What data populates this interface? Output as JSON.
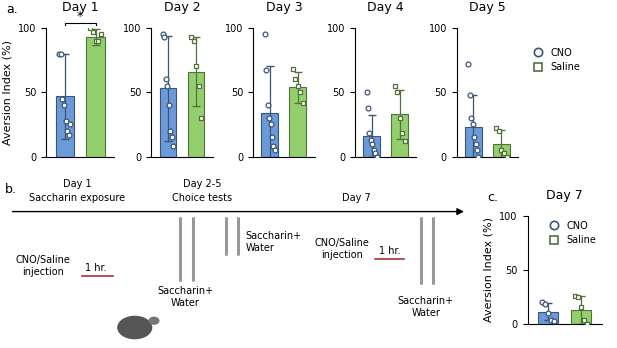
{
  "chart_data": [
    {
      "type": "bar",
      "panel_label": "a.",
      "title": "Day 1",
      "ylabel": "Aversion Index (%)",
      "ylim": [
        0,
        100
      ],
      "yticks": [
        0,
        50,
        100
      ],
      "tick_labels": "y",
      "annotations": [
        "*"
      ],
      "series": [
        {
          "name": "CNO",
          "color": "#6a9ad8",
          "marker": "circle",
          "values": [
            47
          ],
          "error": [
            33
          ],
          "points": [
            80,
            80,
            45,
            40,
            28,
            20,
            17,
            25
          ]
        },
        {
          "name": "Saline",
          "color": "#94cf6e",
          "marker": "square",
          "values": [
            93
          ],
          "error": [
            6
          ],
          "points": [
            100,
            97,
            90,
            90,
            95
          ]
        }
      ]
    },
    {
      "type": "bar",
      "title": "Day 2",
      "ylim": [
        0,
        100
      ],
      "yticks": [
        0,
        50,
        100
      ],
      "tick_labels": "y",
      "series": [
        {
          "name": "CNO",
          "color": "#6a9ad8",
          "marker": "circle",
          "values": [
            53
          ],
          "error": [
            41
          ],
          "points": [
            95,
            93,
            60,
            55,
            40,
            20,
            15,
            8
          ]
        },
        {
          "name": "Saline",
          "color": "#94cf6e",
          "marker": "square",
          "values": [
            66
          ],
          "error": [
            27
          ],
          "points": [
            93,
            90,
            70,
            55,
            30
          ]
        }
      ]
    },
    {
      "type": "bar",
      "title": "Day 3",
      "ylim": [
        0,
        100
      ],
      "yticks": [
        0,
        50,
        100
      ],
      "tick_labels": "y",
      "series": [
        {
          "name": "CNO",
          "color": "#6a9ad8",
          "marker": "circle",
          "values": [
            34
          ],
          "error": [
            36
          ],
          "points": [
            95,
            67,
            40,
            30,
            25,
            15,
            8,
            5
          ]
        },
        {
          "name": "Saline",
          "color": "#94cf6e",
          "marker": "square",
          "values": [
            54
          ],
          "error": [
            12
          ],
          "points": [
            68,
            60,
            55,
            50,
            42
          ]
        }
      ]
    },
    {
      "type": "bar",
      "title": "Day 4",
      "ylim": [
        0,
        100
      ],
      "yticks": [
        0,
        50,
        100
      ],
      "tick_labels": "y",
      "series": [
        {
          "name": "CNO",
          "color": "#6a9ad8",
          "marker": "circle",
          "values": [
            16
          ],
          "error": [
            16
          ],
          "points": [
            50,
            38,
            18,
            13,
            10,
            5,
            3,
            0
          ]
        },
        {
          "name": "Saline",
          "color": "#94cf6e",
          "marker": "square",
          "values": [
            33
          ],
          "error": [
            19
          ],
          "points": [
            55,
            50,
            30,
            18,
            12
          ]
        }
      ]
    },
    {
      "type": "bar",
      "title": "Day 5",
      "ylim": [
        0,
        100
      ],
      "yticks": [
        0,
        50,
        100
      ],
      "tick_labels": "y",
      "legend": "right",
      "series": [
        {
          "name": "CNO",
          "color": "#6a9ad8",
          "marker": "circle",
          "values": [
            23
          ],
          "error": [
            25
          ],
          "points": [
            72,
            48,
            30,
            25,
            15,
            10,
            5,
            0
          ]
        },
        {
          "name": "Saline",
          "color": "#94cf6e",
          "marker": "square",
          "values": [
            10
          ],
          "error": [
            11
          ],
          "points": [
            22,
            20,
            5,
            3,
            0
          ]
        }
      ]
    },
    {
      "type": "bar",
      "panel_label": "c.",
      "title": "Day 7",
      "ylabel": "Aversion Index (%)",
      "ylim": [
        0,
        100
      ],
      "yticks": [
        0,
        50,
        100
      ],
      "tick_labels": "y",
      "legend": "upper right",
      "series": [
        {
          "name": "CNO",
          "color": "#6a9ad8",
          "marker": "circle",
          "values": [
            11
          ],
          "error": [
            8
          ],
          "points": [
            20,
            18,
            10,
            3,
            2
          ]
        },
        {
          "name": "Saline",
          "color": "#94cf6e",
          "marker": "square",
          "values": [
            13
          ],
          "error": [
            13
          ],
          "points": [
            26,
            25,
            15,
            3,
            0
          ]
        }
      ]
    }
  ],
  "timeline": {
    "panel_label": "b.",
    "day1": {
      "day": "Day 1",
      "label": "Saccharin exposure",
      "injection": "CNO/Saline\ninjection",
      "delay": "1 hr.",
      "bottles": "Saccharin+\nWater"
    },
    "days2_5": {
      "day": "Day 2-5",
      "label": "Choice tests",
      "bottles": "Saccharin+\nWater"
    },
    "day7": {
      "day": "Day 7",
      "injection": "CNO/Saline\ninjection",
      "delay": "1 hr.",
      "bottles": "Saccharin+\nWater"
    }
  }
}
